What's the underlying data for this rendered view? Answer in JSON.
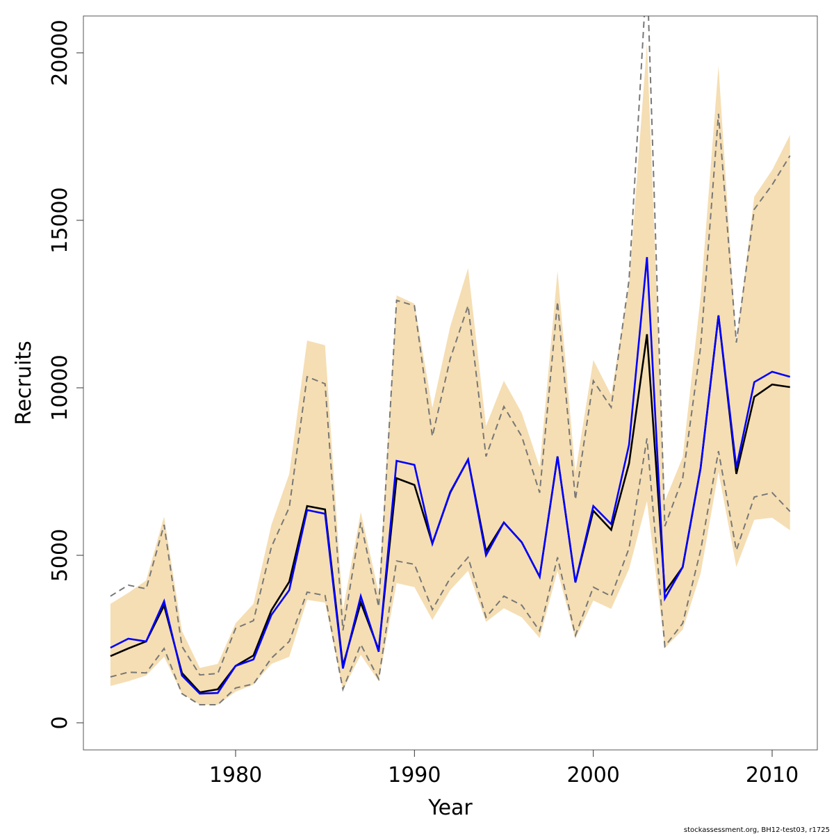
{
  "chart_data": {
    "type": "line",
    "title": "",
    "xlabel": "Year",
    "ylabel": "Recruits",
    "xlim": [
      1971.5,
      2012.5
    ],
    "ylim": [
      -1600,
      20800
    ],
    "x_ticks": [
      1980,
      1990,
      2000,
      2010
    ],
    "x_tick_labels": [
      "1980",
      "1990",
      "2000",
      "2010"
    ],
    "y_ticks": [
      0,
      5000,
      10000,
      15000,
      20000
    ],
    "y_tick_labels": [
      "0",
      "5000",
      "10000",
      "15000",
      "20000"
    ],
    "grid": false,
    "legend": "none",
    "footer": "stockassessment.org, BH12-test03, r1725",
    "colors": {
      "band": "#F5DEB3",
      "estimate": "#000000",
      "alternative": "#0000FF",
      "ci_dashed": "#777777"
    },
    "x": [
      1973,
      1974,
      1975,
      1976,
      1977,
      1978,
      1979,
      1980,
      1981,
      1982,
      1983,
      1984,
      1985,
      1986,
      1987,
      1988,
      1989,
      1990,
      1991,
      1992,
      1993,
      1994,
      1995,
      1996,
      1997,
      1998,
      1999,
      2000,
      2001,
      2002,
      2003,
      2004,
      2005,
      2006,
      2007,
      2008,
      2009,
      2010,
      2011
    ],
    "series": [
      {
        "name": "band_upper",
        "values": [
          3550,
          3880,
          4250,
          6160,
          2740,
          1640,
          1760,
          2970,
          3550,
          5910,
          7430,
          11410,
          11270,
          3360,
          6290,
          3880,
          12760,
          12510,
          9400,
          11830,
          13570,
          8860,
          10210,
          9250,
          7630,
          13490,
          7470,
          10830,
          9790,
          13090,
          20290,
          6620,
          7930,
          12720,
          19610,
          11350,
          15710,
          16500,
          17550
        ]
      },
      {
        "name": "band_lower",
        "values": [
          1100,
          1240,
          1410,
          1970,
          870,
          540,
          540,
          930,
          1140,
          1760,
          1970,
          3670,
          3590,
          975,
          2030,
          1240,
          4170,
          4050,
          3070,
          3960,
          4540,
          3010,
          3420,
          3150,
          2530,
          4540,
          2510,
          3650,
          3400,
          4590,
          6620,
          2230,
          2780,
          4460,
          7490,
          4650,
          6060,
          6120,
          5750
        ]
      },
      {
        "name": "ci_upper",
        "values": [
          3780,
          4110,
          4000,
          5910,
          2280,
          1430,
          1470,
          2820,
          3050,
          5250,
          6430,
          10330,
          10120,
          2760,
          5980,
          3460,
          12610,
          12450,
          8550,
          10870,
          12450,
          7950,
          9440,
          8550,
          6870,
          12570,
          6660,
          10210,
          9420,
          13220,
          22500,
          5870,
          7300,
          11220,
          18180,
          11350,
          15330,
          16060,
          16930
        ]
      },
      {
        "name": "ci_lower",
        "values": [
          1370,
          1510,
          1490,
          2220,
          870,
          540,
          540,
          1040,
          1160,
          1930,
          2430,
          3900,
          3800,
          1000,
          2340,
          1310,
          4830,
          4730,
          3380,
          4320,
          4940,
          3150,
          3780,
          3510,
          2740,
          4940,
          2610,
          4050,
          3780,
          5210,
          8490,
          2280,
          2970,
          5150,
          8110,
          5150,
          6740,
          6870,
          6310
        ]
      },
      {
        "name": "estimate",
        "values": [
          1990,
          2220,
          2430,
          3500,
          1490,
          910,
          1000,
          1700,
          2010,
          3360,
          4210,
          6470,
          6370,
          1700,
          3590,
          2180,
          7300,
          7100,
          5350,
          6870,
          7860,
          5120,
          5980,
          5390,
          4360,
          7950,
          4190,
          6330,
          5760,
          7740,
          11600,
          3900,
          4650,
          7610,
          12160,
          7430,
          9730,
          10100,
          10020
        ]
      },
      {
        "name": "alternative",
        "values": [
          2240,
          2510,
          2430,
          3630,
          1410,
          870,
          890,
          1700,
          1890,
          3220,
          3960,
          6350,
          6240,
          1620,
          3780,
          2120,
          7820,
          7700,
          5350,
          6890,
          7860,
          5000,
          5980,
          5390,
          4360,
          7950,
          4190,
          6470,
          5930,
          8300,
          13900,
          3710,
          4650,
          7610,
          12160,
          7610,
          10170,
          10480,
          10330
        ]
      }
    ]
  }
}
